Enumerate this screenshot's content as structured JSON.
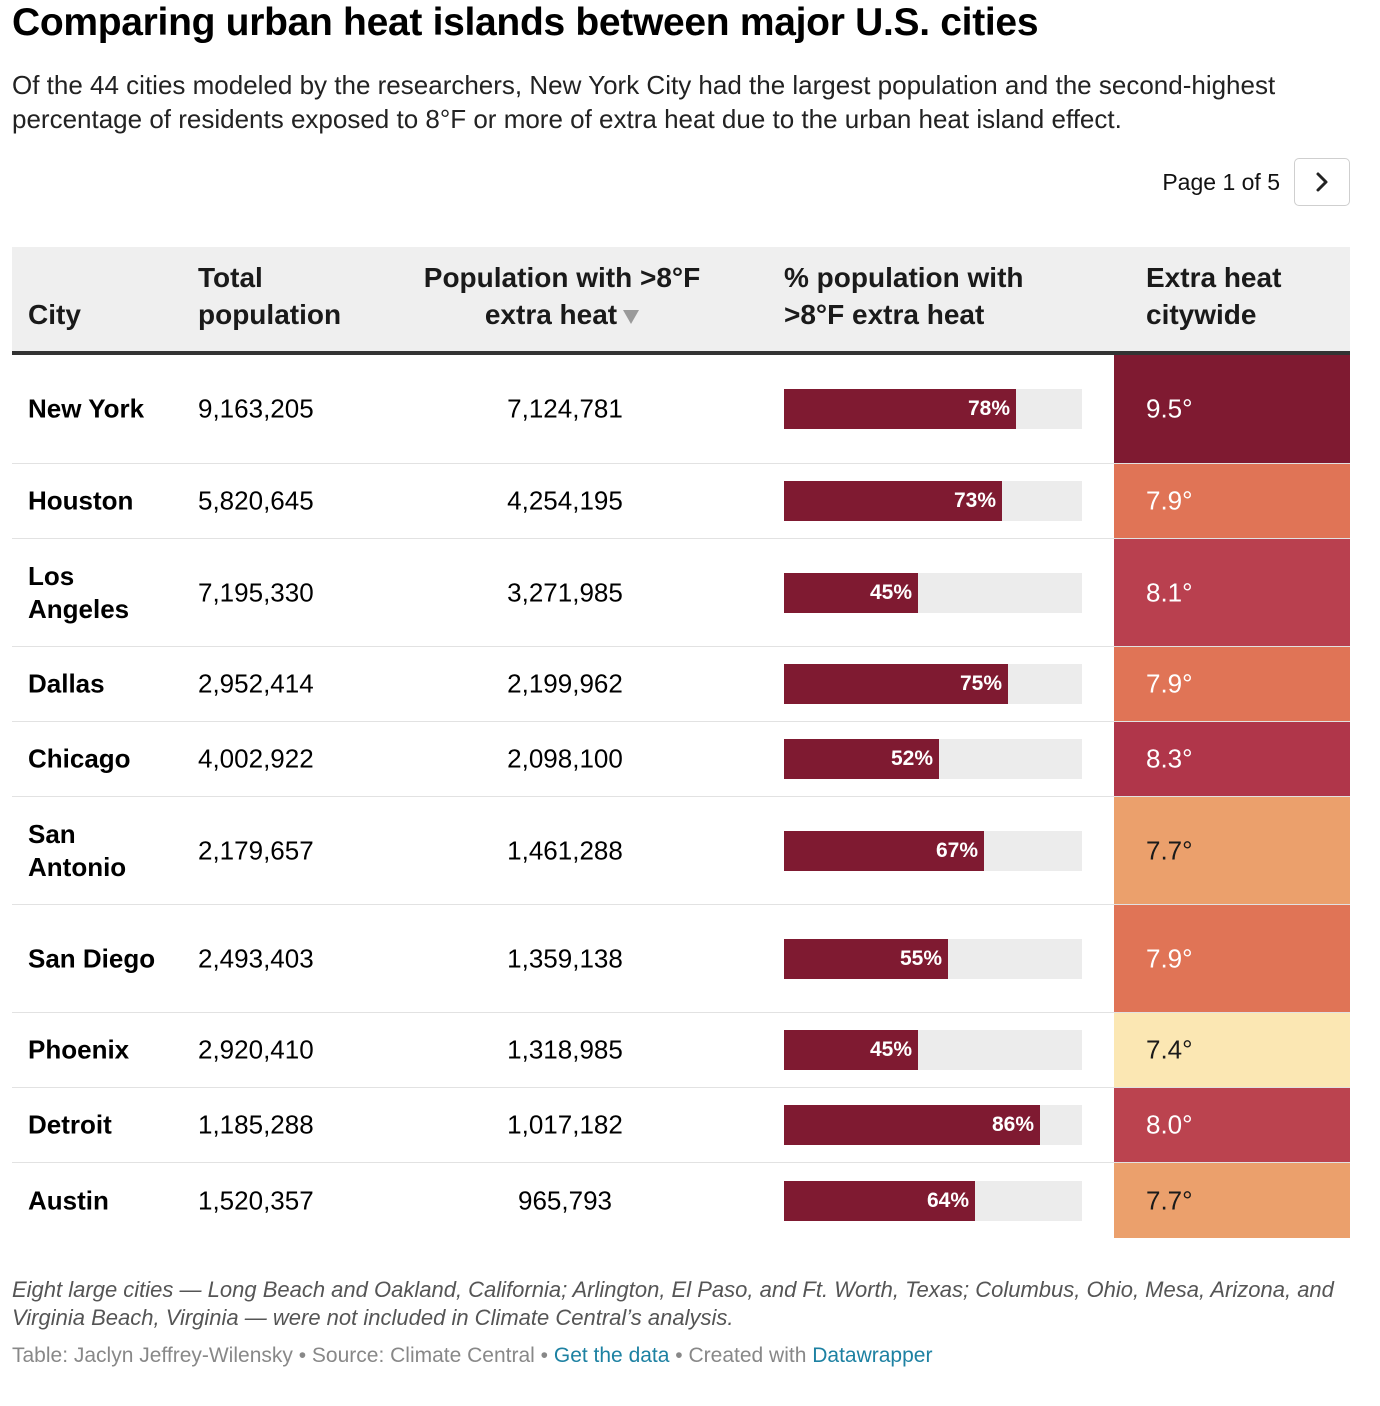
{
  "title": "Comparing urban heat islands between major U.S. cities",
  "subtitle": "Of the 44 cities modeled by the researchers, New York City had the largest population and the second-highest percentage of residents exposed to 8°F or more of extra heat due to the urban heat island effect.",
  "pagination": {
    "label": "Page 1 of 5",
    "next_icon": "chevron-right-icon"
  },
  "headers": {
    "city": "City",
    "total": "Total population",
    "pop_extra": "Population with >8°F extra heat",
    "pct": "% population with >8°F extra heat",
    "heat": "Extra heat citywide"
  },
  "sort_icon": "sort-desc-triangle-icon",
  "rows": [
    {
      "city": "New York",
      "total": "9,163,205",
      "pop_extra": "7,124,781",
      "pct_value": 78,
      "pct_label": "78%",
      "heat": "9.5°",
      "heat_color": "#7f1a31",
      "heat_text_color": "#ffffff"
    },
    {
      "city": "Houston",
      "total": "5,820,645",
      "pop_extra": "4,254,195",
      "pct_value": 73,
      "pct_label": "73%",
      "heat": "7.9°",
      "heat_color": "#e07456",
      "heat_text_color": "#ffffff"
    },
    {
      "city": "Los Angeles",
      "total": "7,195,330",
      "pop_extra": "3,271,985",
      "pct_value": 45,
      "pct_label": "45%",
      "heat": "8.1°",
      "heat_color": "#b9404f",
      "heat_text_color": "#ffffff"
    },
    {
      "city": "Dallas",
      "total": "2,952,414",
      "pop_extra": "2,199,962",
      "pct_value": 75,
      "pct_label": "75%",
      "heat": "7.9°",
      "heat_color": "#e07456",
      "heat_text_color": "#ffffff"
    },
    {
      "city": "Chicago",
      "total": "4,002,922",
      "pop_extra": "2,098,100",
      "pct_value": 52,
      "pct_label": "52%",
      "heat": "8.3°",
      "heat_color": "#b0364a",
      "heat_text_color": "#ffffff"
    },
    {
      "city": "San Antonio",
      "total": "2,179,657",
      "pop_extra": "1,461,288",
      "pct_value": 67,
      "pct_label": "67%",
      "heat": "7.7°",
      "heat_color": "#eba06c",
      "heat_text_color": "#1a1a1a"
    },
    {
      "city": "San Diego",
      "total": "2,493,403",
      "pop_extra": "1,359,138",
      "pct_value": 55,
      "pct_label": "55%",
      "heat": "7.9°",
      "heat_color": "#e07456",
      "heat_text_color": "#ffffff"
    },
    {
      "city": "Phoenix",
      "total": "2,920,410",
      "pop_extra": "1,318,985",
      "pct_value": 45,
      "pct_label": "45%",
      "heat": "7.4°",
      "heat_color": "#fbe7b3",
      "heat_text_color": "#1a1a1a"
    },
    {
      "city": "Detroit",
      "total": "1,185,288",
      "pop_extra": "1,017,182",
      "pct_value": 86,
      "pct_label": "86%",
      "heat": "8.0°",
      "heat_color": "#bb434f",
      "heat_text_color": "#ffffff"
    },
    {
      "city": "Austin",
      "total": "1,520,357",
      "pop_extra": "965,793",
      "pct_value": 64,
      "pct_label": "64%",
      "heat": "7.7°",
      "heat_color": "#eba06c",
      "heat_text_color": "#1a1a1a"
    }
  ],
  "note": "Eight large cities — Long Beach and Oakland, California; Arlington, El Paso, and Ft. Worth, Texas; Columbus, Ohio, Mesa, Arizona, and Virginia Beach, Virginia — were not included in Climate Central’s analysis.",
  "footer": {
    "credit": "Table: Jaclyn Jeffrey-Wilensky",
    "separator": " • ",
    "source": "Source: Climate Central",
    "get_data": "Get the data",
    "created": "Created with",
    "tool": "Datawrapper"
  }
}
